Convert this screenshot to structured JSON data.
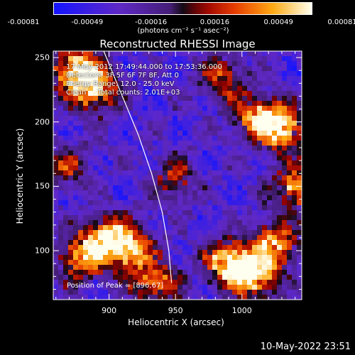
{
  "colorbar": {
    "ticks": [
      "-0.00081",
      "-0.00049",
      "-0.00016",
      "0.00016",
      "0.00049",
      "0.00081"
    ],
    "unit": "(photons cm⁻² s⁻¹ asec⁻²)",
    "range": [
      -0.00081,
      0.00081
    ]
  },
  "chart_data": {
    "type": "heatmap",
    "title": "Reconstructed RHESSI Image",
    "xlabel": "Heliocentric X (arcsec)",
    "ylabel": "Heliocentric Y (arcsec)",
    "xlim": [
      858,
      1045
    ],
    "ylim": [
      62,
      255
    ],
    "xticks": [
      900,
      950,
      1000
    ],
    "yticks": [
      100,
      150,
      200,
      250
    ],
    "limb_curve": [
      [
        896,
        255
      ],
      [
        910,
        220
      ],
      [
        922,
        190
      ],
      [
        932,
        160
      ],
      [
        940,
        130
      ],
      [
        945,
        100
      ],
      [
        947,
        75
      ]
    ],
    "bright_regions": [
      {
        "x": 875,
        "y": 240,
        "level": 1.0
      },
      {
        "x": 890,
        "y": 225,
        "level": 0.8
      },
      {
        "x": 900,
        "y": 110,
        "level": 0.9
      },
      {
        "x": 918,
        "y": 100,
        "level": 0.7
      },
      {
        "x": 880,
        "y": 95,
        "level": 0.8
      },
      {
        "x": 935,
        "y": 75,
        "level": 0.7
      },
      {
        "x": 990,
        "y": 90,
        "level": 1.0
      },
      {
        "x": 1010,
        "y": 80,
        "level": 0.9
      },
      {
        "x": 1025,
        "y": 105,
        "level": 0.8
      },
      {
        "x": 1030,
        "y": 195,
        "level": 1.0
      },
      {
        "x": 1010,
        "y": 205,
        "level": 0.7
      },
      {
        "x": 1040,
        "y": 150,
        "level": 0.8
      },
      {
        "x": 985,
        "y": 235,
        "level": 0.6
      },
      {
        "x": 950,
        "y": 155,
        "level": 0.5
      },
      {
        "x": 868,
        "y": 165,
        "level": 0.5
      }
    ]
  },
  "info": {
    "line1": "17-May-2012 17:49:44.000 to 17:53:36.000",
    "line2": "Detectors: 3F 5F 6F 7F 8F, Att 0",
    "line3": "Energy Range: 12.0 - 25.0 keV",
    "line4": "Clean     Total counts: 2.01E+03"
  },
  "peak": "Position of Peak = [896,67]",
  "timestamp": "10-May-2022 23:51"
}
